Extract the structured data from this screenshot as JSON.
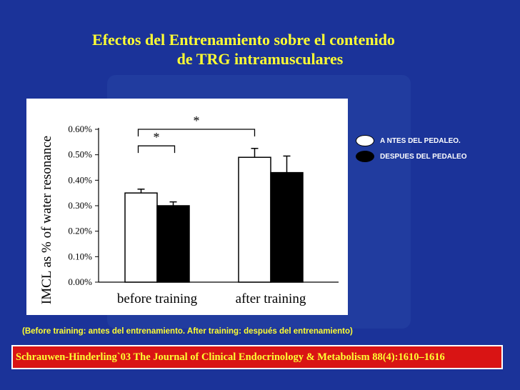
{
  "title_line1": "Efectos del Entrenamiento sobre el contenido",
  "title_line2": "de TRG intramusculares",
  "legend": [
    {
      "label": "A NTES DEL PEDALEO.",
      "color": "#ffffff"
    },
    {
      "label": "DESPUES DEL PEDALEO",
      "color": "#000000"
    }
  ],
  "footnote": "(Before training: antes del entrenamiento.  After training: después del entrenamiento)",
  "citation": "Schrauwen-Hinderling`03 The Journal of Clinical Endocrinology & Metabolism 88(4):1610–1616",
  "colors": {
    "background": "#1b3399",
    "title": "#ffff33",
    "citation_bg": "#d91414"
  },
  "chart_data": {
    "type": "bar",
    "ylabel": "IMCL as % of water resonance",
    "ylim": [
      0,
      0.6
    ],
    "yticks": [
      0,
      0.1,
      0.2,
      0.3,
      0.4,
      0.5,
      0.6
    ],
    "ytick_labels": [
      "0.00%",
      "0.10%",
      "0.20%",
      "0.30%",
      "0.40%",
      "0.50%",
      "0.60%"
    ],
    "categories": [
      "before training",
      "after training"
    ],
    "series": [
      {
        "name": "A NTES DEL PEDALEO.",
        "color": "#ffffff",
        "values": [
          0.35,
          0.49
        ],
        "errors": [
          0.015,
          0.035
        ]
      },
      {
        "name": "DESPUES DEL PEDALEO",
        "color": "#000000",
        "values": [
          0.3,
          0.43
        ],
        "errors": [
          0.015,
          0.065
        ]
      }
    ],
    "annotations": [
      "*",
      "*"
    ],
    "grid": false,
    "legend_position": "right"
  }
}
